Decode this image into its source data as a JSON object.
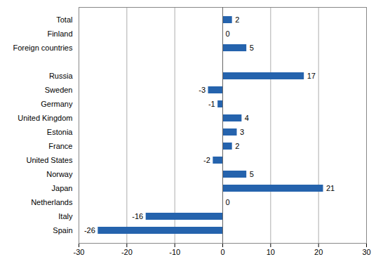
{
  "chart_data": {
    "type": "bar",
    "orientation": "horizontal",
    "categories": [
      "Total",
      "Finland",
      "Foreign countries",
      null,
      "Russia",
      "Sweden",
      "Germany",
      "United Kingdom",
      "Estonia",
      "France",
      "United States",
      "Norway",
      "Japan",
      "Netherlands",
      "Italy",
      "Spain"
    ],
    "values": [
      2,
      0,
      5,
      null,
      17,
      -3,
      -1,
      4,
      3,
      2,
      -2,
      5,
      21,
      0,
      -16,
      -26
    ],
    "color": "#2563ad",
    "xlim": [
      -30,
      30
    ],
    "xticks": [
      -30,
      -20,
      -10,
      0,
      10,
      20,
      30
    ],
    "grid": true,
    "data_labels": true
  }
}
